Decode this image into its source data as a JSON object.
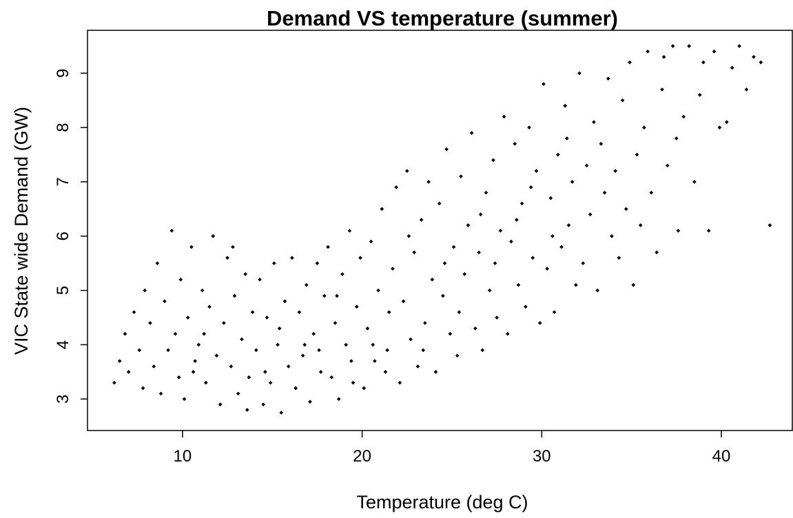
{
  "chart_data": {
    "type": "scatter",
    "title": "Demand VS temperature (summer)",
    "x_label": "Temperature (deg C)",
    "y_label": "VIC State wide Demand (GW)",
    "color": "#000000",
    "xlim": [
      4.71,
      43.95
    ],
    "ylim": [
      2.42,
      9.79
    ],
    "xticks": [
      10,
      20,
      30,
      40
    ],
    "yticks": [
      3,
      4,
      5,
      6,
      7,
      8,
      9
    ],
    "x": [
      6.2,
      6.5,
      6.8,
      7.0,
      7.3,
      7.6,
      7.9,
      7.8,
      8.2,
      8.4,
      8.6,
      8.8,
      9.0,
      9.2,
      9.4,
      9.6,
      9.8,
      9.9,
      10.1,
      10.3,
      10.5,
      10.7,
      10.9,
      11.1,
      11.3,
      11.5,
      11.7,
      11.9,
      11.2,
      10.6,
      12.1,
      12.3,
      12.5,
      12.7,
      12.9,
      13.1,
      13.3,
      13.5,
      13.7,
      13.9,
      12.8,
      13.6,
      14.1,
      14.3,
      14.5,
      14.7,
      14.9,
      15.1,
      15.3,
      15.5,
      15.7,
      15.9,
      14.6,
      15.4,
      16.1,
      16.3,
      16.5,
      16.7,
      16.9,
      17.1,
      17.3,
      17.5,
      17.7,
      17.9,
      16.8,
      17.6,
      18.1,
      18.3,
      18.5,
      18.7,
      18.9,
      19.1,
      19.3,
      19.5,
      19.7,
      19.9,
      18.6,
      19.4,
      20.1,
      20.3,
      20.5,
      20.7,
      20.9,
      21.1,
      21.3,
      21.5,
      21.7,
      21.9,
      20.6,
      21.4,
      22.1,
      22.3,
      22.5,
      22.7,
      22.9,
      23.1,
      23.3,
      23.5,
      23.7,
      23.9,
      22.6,
      23.4,
      24.1,
      24.3,
      24.5,
      24.7,
      24.9,
      25.1,
      25.3,
      25.5,
      25.7,
      25.9,
      24.6,
      25.4,
      26.1,
      26.3,
      26.5,
      26.7,
      26.9,
      27.1,
      27.3,
      27.5,
      27.7,
      27.9,
      26.6,
      27.4,
      28.1,
      28.3,
      28.5,
      28.7,
      28.9,
      29.1,
      29.3,
      29.5,
      29.7,
      29.9,
      28.6,
      29.4,
      30.1,
      30.3,
      30.5,
      30.7,
      30.9,
      31.1,
      31.3,
      31.5,
      31.7,
      31.9,
      30.6,
      31.4,
      32.1,
      32.3,
      32.5,
      32.7,
      32.9,
      33.1,
      33.3,
      33.5,
      33.7,
      33.9,
      34.1,
      34.3,
      34.5,
      34.7,
      34.9,
      35.1,
      35.3,
      35.5,
      35.7,
      35.9,
      36.1,
      36.4,
      36.7,
      37.0,
      37.3,
      37.6,
      37.9,
      36.8,
      37.5,
      38.2,
      38.5,
      38.8,
      39.0,
      39.3,
      39.6,
      39.9,
      40.3,
      40.6,
      41.0,
      41.4,
      41.8,
      42.2,
      42.7
    ],
    "values": [
      3.3,
      3.7,
      4.2,
      3.5,
      4.6,
      3.9,
      5.0,
      3.2,
      4.4,
      3.6,
      5.5,
      3.1,
      4.8,
      3.9,
      6.1,
      4.2,
      3.4,
      5.2,
      3.0,
      4.5,
      5.8,
      3.7,
      4.0,
      5.0,
      3.3,
      4.7,
      6.0,
      3.8,
      4.2,
      3.5,
      2.9,
      4.4,
      5.6,
      3.6,
      4.9,
      3.1,
      4.1,
      5.3,
      3.4,
      4.6,
      5.8,
      2.8,
      3.9,
      5.2,
      2.9,
      4.5,
      3.3,
      5.5,
      4.0,
      2.75,
      4.8,
      3.6,
      3.5,
      4.3,
      5.6,
      3.2,
      4.6,
      3.8,
      5.1,
      2.95,
      4.2,
      5.5,
      3.5,
      4.9,
      4.0,
      3.9,
      5.8,
      3.4,
      4.4,
      3.0,
      5.3,
      4.0,
      6.1,
      3.3,
      4.7,
      5.6,
      4.9,
      3.7,
      3.2,
      4.3,
      5.9,
      3.7,
      5.0,
      6.5,
      3.5,
      4.6,
      5.4,
      6.9,
      4.0,
      3.9,
      3.3,
      4.8,
      7.2,
      4.1,
      5.7,
      3.6,
      6.3,
      4.4,
      7.0,
      5.2,
      6.0,
      3.9,
      3.5,
      6.6,
      4.9,
      7.6,
      4.2,
      5.8,
      3.8,
      7.1,
      5.3,
      6.2,
      5.5,
      4.6,
      7.9,
      4.3,
      5.7,
      3.9,
      6.8,
      5.0,
      7.4,
      4.5,
      6.1,
      8.2,
      6.4,
      5.5,
      4.2,
      5.9,
      7.7,
      5.1,
      6.6,
      4.7,
      8.0,
      5.6,
      7.2,
      4.4,
      6.3,
      6.9,
      8.8,
      5.4,
      6.7,
      4.6,
      7.5,
      5.8,
      8.4,
      6.2,
      7.0,
      5.1,
      6.0,
      7.8,
      9.0,
      5.5,
      7.3,
      6.4,
      8.1,
      5.0,
      7.7,
      6.8,
      8.9,
      6.0,
      7.2,
      5.6,
      8.5,
      6.5,
      9.2,
      5.1,
      7.5,
      6.2,
      8.0,
      9.4,
      6.8,
      5.7,
      8.7,
      7.3,
      9.5,
      6.1,
      8.2,
      9.3,
      7.8,
      9.5,
      7.0,
      8.6,
      9.2,
      6.1,
      9.4,
      8.0,
      8.1,
      9.1,
      9.5,
      8.7,
      9.3,
      9.2,
      6.2
    ]
  }
}
